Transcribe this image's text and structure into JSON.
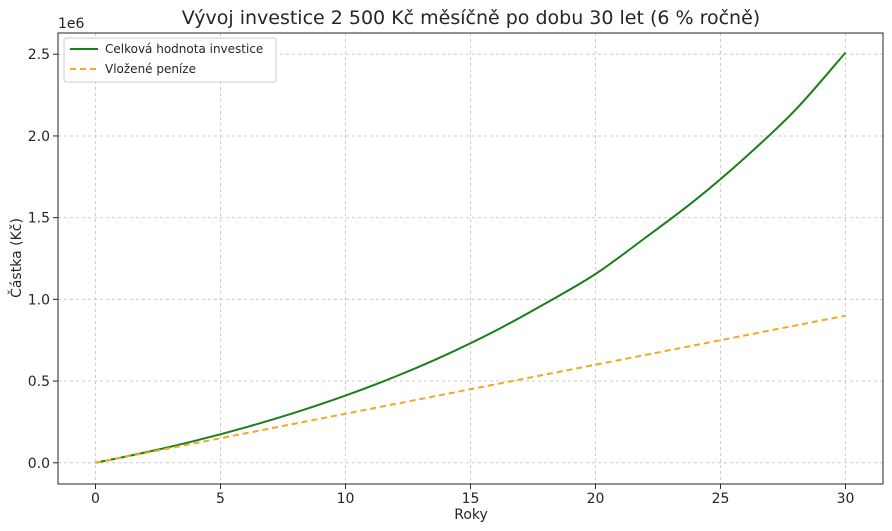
{
  "chart_data": {
    "type": "line",
    "title": "Vývoj investice 2 500 Kč měsíčně po dobu 30 let (6 % ročně)",
    "xlabel": "Roky",
    "ylabel": "Částka (Kč)",
    "y_offset_label": "1e6",
    "xlim": [
      -1.5,
      31.5
    ],
    "ylim": [
      -0.13,
      2.63
    ],
    "y_scale_note": "values in millions (1e6)",
    "x_ticks": [
      0,
      5,
      10,
      15,
      20,
      25,
      30
    ],
    "x_tick_labels": [
      "0",
      "5",
      "10",
      "15",
      "20",
      "25",
      "30"
    ],
    "y_ticks": [
      0,
      0.5,
      1.0,
      1.5,
      2.0,
      2.5
    ],
    "y_tick_labels": [
      "0.0",
      "0.5",
      "1.0",
      "1.5",
      "2.0",
      "2.5"
    ],
    "grid": true,
    "legend_position": "top-left",
    "x": [
      0,
      2,
      4,
      6,
      8,
      10,
      12,
      14,
      16,
      18,
      20,
      22,
      24,
      26,
      28,
      30
    ],
    "series": [
      {
        "name": "Celková hodnota investice",
        "color": "#1a7f1a",
        "style": "solid",
        "values": [
          0,
          0.0636,
          0.1352,
          0.2163,
          0.3077,
          0.411,
          0.5278,
          0.6592,
          0.8077,
          0.9754,
          1.155,
          1.3778,
          1.6092,
          1.8699,
          2.16,
          2.51
        ]
      },
      {
        "name": "Vložené peníze",
        "color": "#f5a623",
        "style": "dashed",
        "values": [
          0,
          0.06,
          0.12,
          0.18,
          0.24,
          0.3,
          0.36,
          0.42,
          0.48,
          0.54,
          0.6,
          0.66,
          0.72,
          0.78,
          0.84,
          0.9
        ]
      }
    ]
  }
}
